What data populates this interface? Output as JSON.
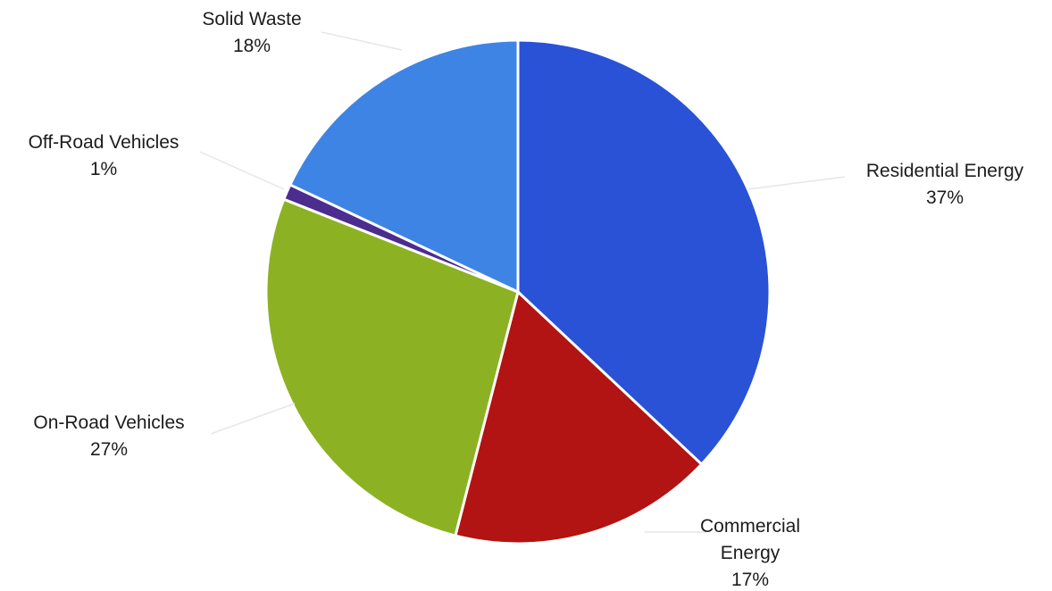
{
  "chart_data": {
    "type": "pie",
    "slices": [
      {
        "category_lines": [
          "Residential Energy"
        ],
        "percent_label": "37%",
        "value": 37,
        "color": "#2a52d6"
      },
      {
        "category_lines": [
          "Commercial",
          "Energy"
        ],
        "percent_label": "17%",
        "value": 17,
        "color": "#b21313"
      },
      {
        "category_lines": [
          "On-Road Vehicles"
        ],
        "percent_label": "27%",
        "value": 27,
        "color": "#8cb224"
      },
      {
        "category_lines": [
          "Off-Road Vehicles"
        ],
        "percent_label": "1%",
        "value": 1,
        "color": "#4b2c8f"
      },
      {
        "category_lines": [
          "Solid Waste"
        ],
        "percent_label": "18%",
        "value": 18,
        "color": "#3e84e4"
      }
    ],
    "start": "12 o'clock",
    "direction": "clockwise",
    "legend": "none",
    "labels": "outside with leader lines"
  }
}
